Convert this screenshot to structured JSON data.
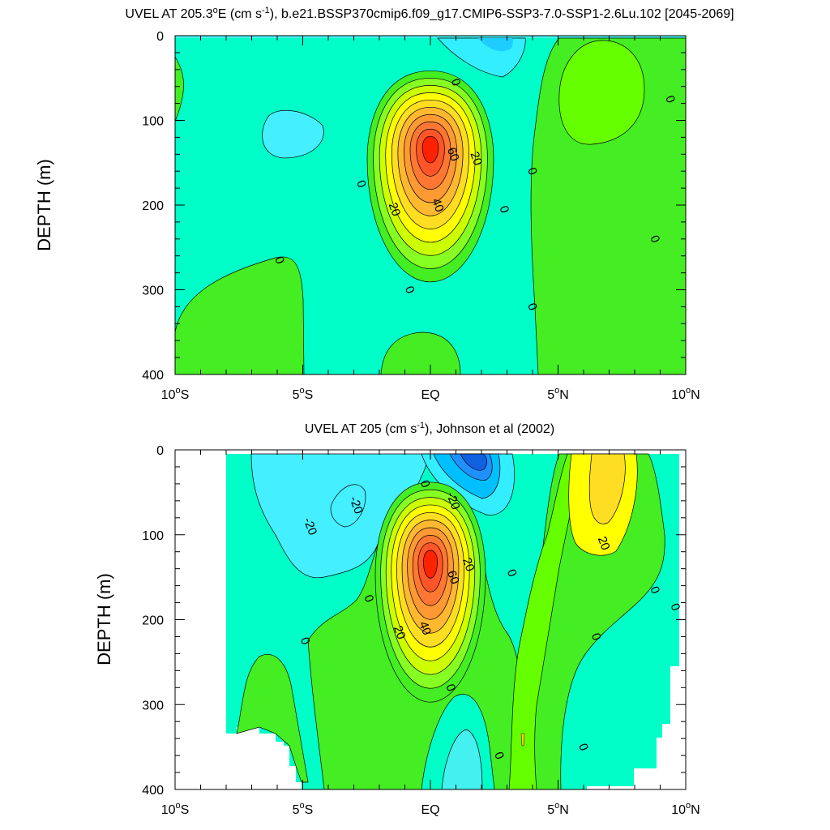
{
  "chart_data": [
    {
      "type": "contour",
      "title_parts": [
        "UVEL AT 205.3",
        "o",
        "E (cm s",
        "-1",
        "), b.e21.BSSP370cmip6.f09_g17.CMIP6-SSP3-7.0-SSP1-2.6Lu.102 [2045-2069]"
      ],
      "ylabel": "DEPTH (m)",
      "xlim": [
        -10,
        10
      ],
      "ylim": [
        400,
        0
      ],
      "yticks": [
        0,
        100,
        200,
        300,
        400
      ],
      "xticks": [
        {
          "value": -10,
          "num": "10",
          "sup": "o",
          "hemi": "S"
        },
        {
          "value": -5,
          "num": "5",
          "sup": "o",
          "hemi": "S"
        },
        {
          "value": 0,
          "num": "EQ",
          "sup": "",
          "hemi": ""
        },
        {
          "value": 5,
          "num": "5",
          "sup": "o",
          "hemi": "N"
        },
        {
          "value": 10,
          "num": "10",
          "sup": "o",
          "hemi": "N"
        }
      ],
      "contour_interval": 10,
      "core": {
        "lat": 0.0,
        "depth": 130,
        "max_value": 95
      },
      "contour_labels": [
        {
          "text": "0",
          "lat": 1.0,
          "depth": 55
        },
        {
          "text": "0",
          "lat": 9.4,
          "depth": 75
        },
        {
          "text": "60",
          "lat": 0.9,
          "depth": 140
        },
        {
          "text": "20",
          "lat": 1.8,
          "depth": 145
        },
        {
          "text": "0",
          "lat": 4.0,
          "depth": 160
        },
        {
          "text": "0",
          "lat": -2.7,
          "depth": 175
        },
        {
          "text": "40",
          "lat": 0.3,
          "depth": 200
        },
        {
          "text": "20",
          "lat": -1.4,
          "depth": 205
        },
        {
          "text": "0",
          "lat": 2.9,
          "depth": 205
        },
        {
          "text": "0",
          "lat": 8.8,
          "depth": 240
        },
        {
          "text": "0",
          "lat": -5.9,
          "depth": 265
        },
        {
          "text": "0",
          "lat": -0.8,
          "depth": 300
        },
        {
          "text": "0",
          "lat": 4.0,
          "depth": 320
        }
      ]
    },
    {
      "type": "contour",
      "title_parts": [
        "UVEL AT 205 (cm s",
        "-1",
        "), Johnson et al (2002)"
      ],
      "ylabel": "DEPTH (m)",
      "xlim": [
        -10,
        10
      ],
      "ylim": [
        400,
        0
      ],
      "yticks": [
        0,
        100,
        200,
        300,
        400
      ],
      "xticks": [
        {
          "value": -10,
          "num": "10",
          "sup": "o",
          "hemi": "S"
        },
        {
          "value": -5,
          "num": "5",
          "sup": "o",
          "hemi": "S"
        },
        {
          "value": 0,
          "num": "EQ",
          "sup": "",
          "hemi": ""
        },
        {
          "value": 5,
          "num": "5",
          "sup": "o",
          "hemi": "N"
        },
        {
          "value": 10,
          "num": "10",
          "sup": "o",
          "hemi": "N"
        }
      ],
      "contour_interval": 10,
      "core": {
        "lat": 0.0,
        "depth": 130,
        "max_value": 90
      },
      "contour_labels": [
        {
          "text": "-20",
          "lat": -4.7,
          "depth": 90
        },
        {
          "text": "-20",
          "lat": -2.9,
          "depth": 65
        },
        {
          "text": "0",
          "lat": -0.2,
          "depth": 40
        },
        {
          "text": "-20",
          "lat": 0.9,
          "depth": 60
        },
        {
          "text": "20",
          "lat": 6.8,
          "depth": 110
        },
        {
          "text": "20",
          "lat": 1.5,
          "depth": 135
        },
        {
          "text": "60",
          "lat": 0.9,
          "depth": 150
        },
        {
          "text": "0",
          "lat": 3.2,
          "depth": 145
        },
        {
          "text": "0",
          "lat": 8.8,
          "depth": 165
        },
        {
          "text": "0",
          "lat": -2.4,
          "depth": 175
        },
        {
          "text": "0",
          "lat": 9.6,
          "depth": 185
        },
        {
          "text": "40",
          "lat": -0.2,
          "depth": 210
        },
        {
          "text": "20",
          "lat": -1.2,
          "depth": 215
        },
        {
          "text": "0",
          "lat": 6.5,
          "depth": 220
        },
        {
          "text": "0",
          "lat": -4.9,
          "depth": 225
        },
        {
          "text": "0",
          "lat": 0.8,
          "depth": 280
        },
        {
          "text": "0",
          "lat": 6.0,
          "depth": 350
        },
        {
          "text": "0",
          "lat": 2.7,
          "depth": 360
        }
      ]
    }
  ]
}
